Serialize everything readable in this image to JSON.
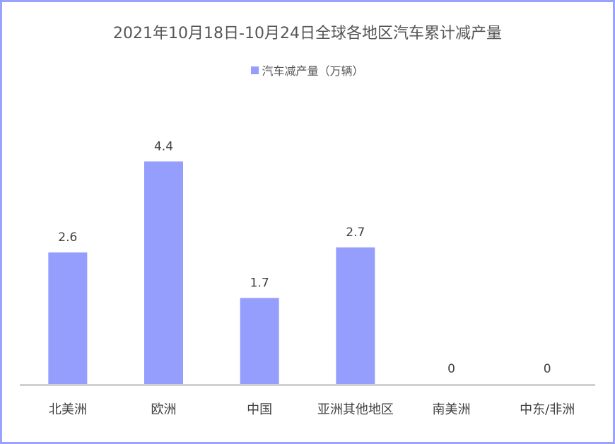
{
  "chart_data": {
    "type": "bar",
    "title": "2021年10月18日-10月24日全球各地区汽车累计减产量",
    "categories": [
      "北美洲",
      "欧洲",
      "中国",
      "亚洲其他地区",
      "南美洲",
      "中东/非洲"
    ],
    "series": [
      {
        "name": "汽车减产量（万辆）",
        "values": [
          2.6,
          4.4,
          1.7,
          2.7,
          0,
          0
        ]
      }
    ],
    "data_labels": [
      "2.6",
      "4.4",
      "1.7",
      "2.7",
      "0",
      "0"
    ],
    "ylim": [
      0,
      6
    ],
    "grid": false,
    "legend_position": "top",
    "bar_color": "#959dfd",
    "axis_color": "#d0d0d0",
    "border_color": "#9aa2ff"
  }
}
